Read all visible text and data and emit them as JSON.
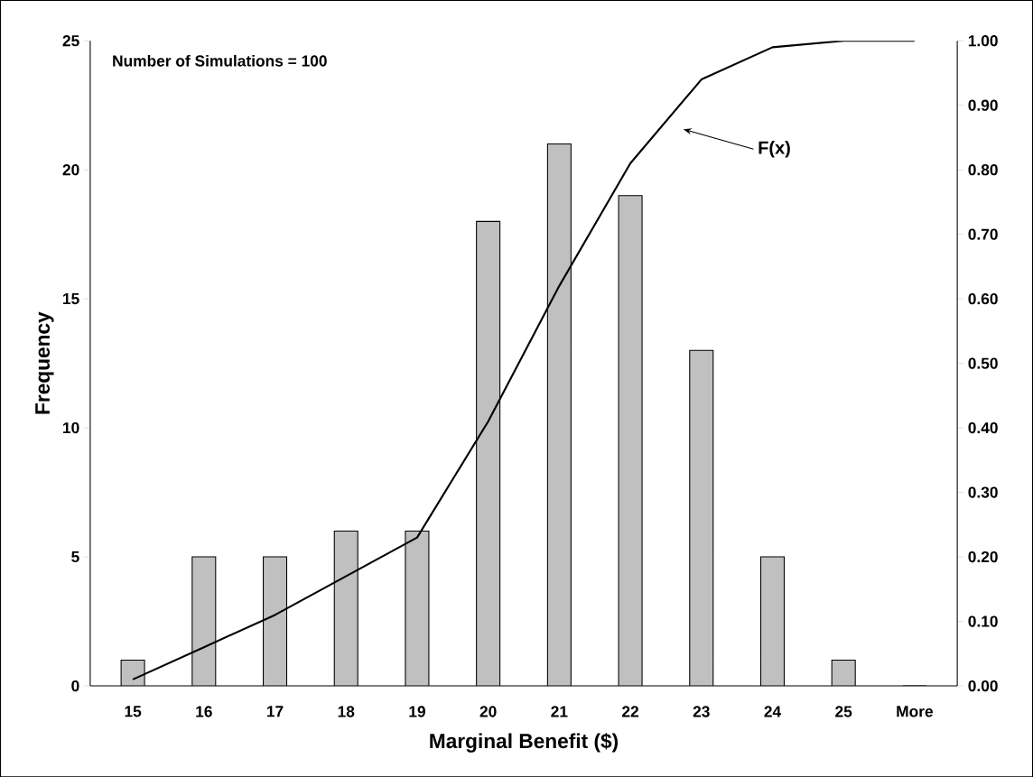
{
  "chart_data": {
    "type": "bar",
    "xlabel": "Marginal Benefit ($)",
    "ylabel": "Frequency",
    "categories": [
      "15",
      "16",
      "17",
      "18",
      "19",
      "20",
      "21",
      "22",
      "23",
      "24",
      "25",
      "More"
    ],
    "series": [
      {
        "color": "#c0c0c0",
        "values": [
          1,
          5,
          5,
          6,
          6,
          18,
          21,
          19,
          13,
          5,
          1,
          0
        ]
      },
      {
        "type": "line",
        "axis": "y2",
        "color": "#000000",
        "values": [
          0.01,
          0.06,
          0.11,
          0.17,
          0.23,
          0.41,
          0.62,
          0.81,
          0.94,
          0.99,
          1.0,
          1.0
        ]
      }
    ],
    "ylim": [
      0,
      25
    ],
    "yticks": [
      0,
      5,
      10,
      15,
      20,
      25
    ],
    "y2lim": [
      0,
      1
    ],
    "y2ticks": [
      {
        "value": 0,
        "label": "0.00"
      },
      {
        "value": 0.1,
        "label": "0.10"
      },
      {
        "value": 0.2,
        "label": "0.20"
      },
      {
        "value": 0.3,
        "label": "0.30"
      },
      {
        "value": 0.4,
        "label": "0.40"
      },
      {
        "value": 0.5,
        "label": "0.50"
      },
      {
        "value": 0.6,
        "label": "0.60"
      },
      {
        "value": 0.7,
        "label": "0.70"
      },
      {
        "value": 0.8,
        "label": "0.80"
      },
      {
        "value": 0.9,
        "label": "0.90"
      },
      {
        "value": 1,
        "label": "1.00"
      }
    ],
    "marker": "none",
    "annotations": [
      "Number of Simulations = 100",
      "F(x)"
    ]
  }
}
